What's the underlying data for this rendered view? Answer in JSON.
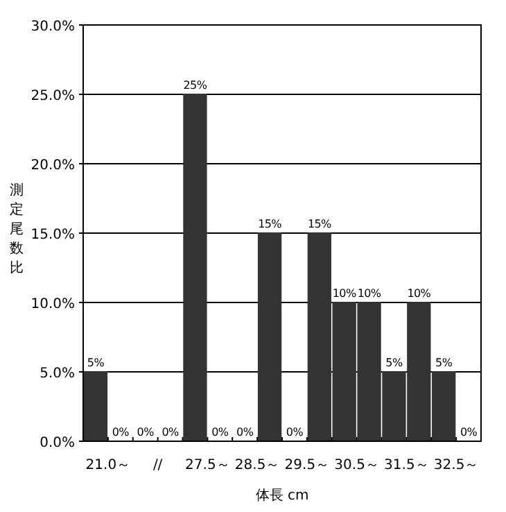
{
  "chart_data": {
    "type": "bar",
    "xlabel": "体長 cm",
    "ylabel": "測定尾数比",
    "categories": [
      "21.0～",
      null,
      "//",
      null,
      "27.5～",
      null,
      "28.5～",
      null,
      "29.5～",
      null,
      "30.5～",
      null,
      "31.5～",
      null,
      "32.5～",
      null
    ],
    "values": [
      5,
      0,
      0,
      0,
      25,
      0,
      0,
      15,
      0,
      15,
      10,
      10,
      5,
      10,
      5,
      0
    ],
    "value_labels": [
      "5%",
      "0%",
      "0%",
      "0%",
      "25%",
      "0%",
      "0%",
      "15%",
      "0%",
      "15%",
      "10%",
      "10%",
      "5%",
      "10%",
      "5%",
      "0%"
    ],
    "color": "#333333",
    "ylim": [
      0,
      30
    ],
    "yticks": [
      {
        "value": 0,
        "label": "0.0%"
      },
      {
        "value": 5,
        "label": "5.0%"
      },
      {
        "value": 10,
        "label": "10.0%"
      },
      {
        "value": 15,
        "label": "15.0%"
      },
      {
        "value": 20,
        "label": "20.0%"
      },
      {
        "value": 25,
        "label": "25.0%"
      },
      {
        "value": 30,
        "label": "30.0%"
      }
    ],
    "grid": "y"
  }
}
